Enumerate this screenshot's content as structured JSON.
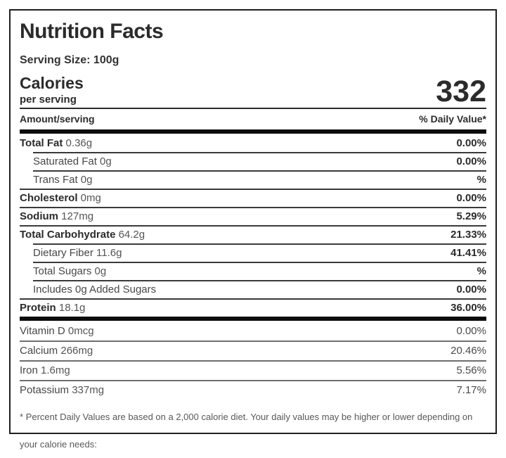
{
  "label": {
    "title": "Nutrition Facts",
    "serving_size": "Serving Size: 100g",
    "calories": {
      "label": "Calories",
      "sub_label": "per serving",
      "value": "332"
    },
    "columns": {
      "amount": "Amount/serving",
      "daily_value": "% Daily Value*"
    },
    "macros": [
      {
        "name": "Total Fat",
        "amount": "0.36g",
        "dv": "0.00%",
        "bold": true,
        "indent": false
      },
      {
        "name": "Saturated Fat",
        "amount": "0g",
        "dv": "0.00%",
        "bold": false,
        "indent": true
      },
      {
        "name": "Trans Fat",
        "amount": "0g",
        "dv": "%",
        "bold": false,
        "indent": true
      },
      {
        "name": "Cholesterol",
        "amount": "0mg",
        "dv": "0.00%",
        "bold": true,
        "indent": false
      },
      {
        "name": "Sodium",
        "amount": "127mg",
        "dv": "5.29%",
        "bold": true,
        "indent": false
      },
      {
        "name": "Total Carbohydrate",
        "amount": "64.2g",
        "dv": "21.33%",
        "bold": true,
        "indent": false
      },
      {
        "name": "Dietary Fiber",
        "amount": "11.6g",
        "dv": "41.41%",
        "bold": false,
        "indent": true
      },
      {
        "name": "Total Sugars",
        "amount": "0g",
        "dv": "%",
        "bold": false,
        "indent": true
      },
      {
        "name": "Includes 0g Added Sugars",
        "amount": "",
        "dv": "0.00%",
        "bold": false,
        "indent": true
      },
      {
        "name": "Protein",
        "amount": "18.1g",
        "dv": "36.00%",
        "bold": true,
        "indent": false
      }
    ],
    "micros": [
      {
        "name": "Vitamin D",
        "amount": "0mcg",
        "dv": "0.00%"
      },
      {
        "name": "Calcium",
        "amount": "266mg",
        "dv": "20.46%"
      },
      {
        "name": "Iron",
        "amount": "1.6mg",
        "dv": "5.56%"
      },
      {
        "name": "Potassium",
        "amount": "337mg",
        "dv": "7.17%"
      }
    ],
    "footnote": "* Percent Daily Values are based on a 2,000 calorie diet. Your daily values may be higher or lower depending on your calorie needs:"
  },
  "colors": {
    "border": "#1f1f1f",
    "heading_text": "#2b2b2b",
    "value_text": "#555555",
    "thick_bar": "#0d0d0d"
  }
}
